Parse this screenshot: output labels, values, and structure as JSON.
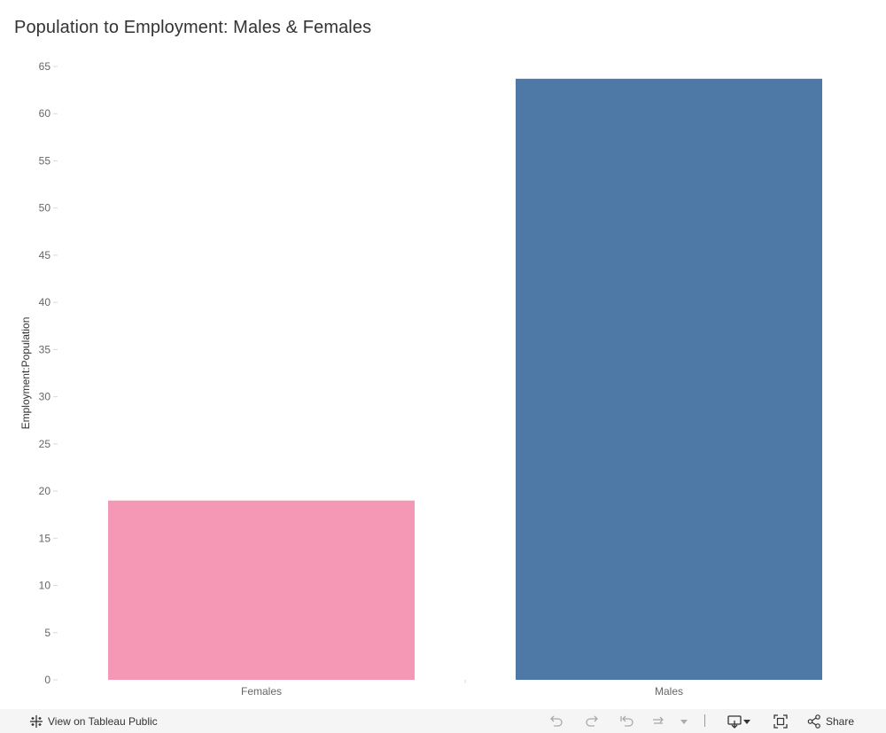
{
  "chart_data": {
    "type": "bar",
    "title": "Population to Employment: Males & Females",
    "ylabel": "Employment:Population",
    "xlabel": "",
    "categories": [
      "Females",
      "Males"
    ],
    "values": [
      19,
      63.7
    ],
    "colors": [
      "#f498b5",
      "#4e79a7"
    ],
    "ylim": [
      0,
      65
    ],
    "yticks": [
      0,
      5,
      10,
      15,
      20,
      25,
      30,
      35,
      40,
      45,
      50,
      55,
      60,
      65
    ],
    "grid": false,
    "legend": "none"
  },
  "toolbar": {
    "view_label": "View on Tableau Public",
    "share_label": "Share",
    "icons": [
      "tableau-logo-icon",
      "undo-icon",
      "redo-icon",
      "revert-icon",
      "refresh-icon",
      "dropdown-icon",
      "download-icon",
      "fullscreen-icon",
      "share-icon"
    ]
  }
}
